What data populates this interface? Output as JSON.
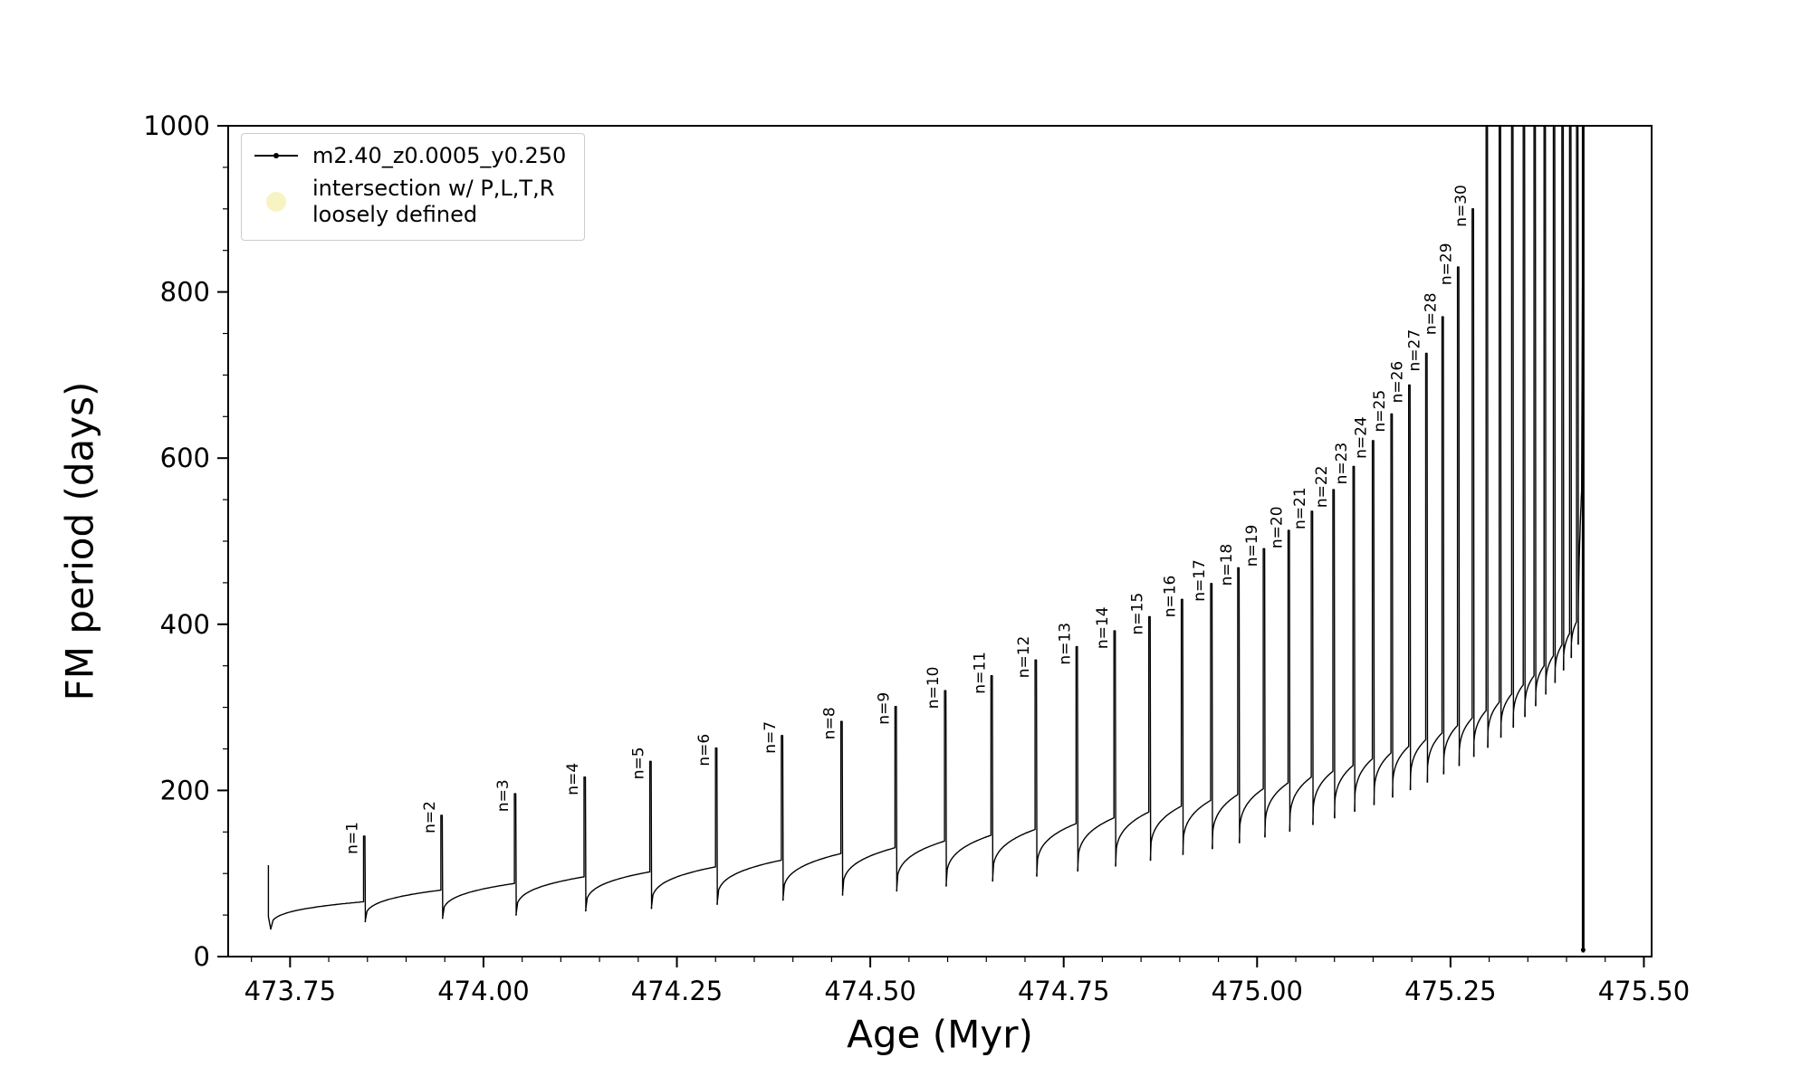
{
  "figure": {
    "background": "#ffffff",
    "axis_color": "#000000"
  },
  "legend": {
    "position": "upper left",
    "series_label": "m2.40_z0.0005_y0.250",
    "intersection_line1": "intersection w/ P,L,T,R",
    "intersection_line2": "loosely defined",
    "marker_color": "#f6f0b4"
  },
  "chart_data": {
    "type": "line",
    "title": "",
    "xlabel": "Age (Myr)",
    "ylabel": "FM period (days)",
    "xlim": [
      473.67,
      475.51
    ],
    "ylim": [
      0,
      1000
    ],
    "xticks": [
      473.75,
      474.0,
      474.25,
      474.5,
      474.75,
      475.0,
      475.25,
      475.5
    ],
    "yticks": [
      0,
      200,
      400,
      600,
      800,
      1000
    ],
    "x_minor_step": 0.05,
    "y_minor_step": 50,
    "grid": false,
    "series_color": "#000000",
    "start": {
      "t": 473.722,
      "y_top": 110,
      "y_low": 33
    },
    "pulses": [
      {
        "label": "n=1",
        "t": 473.845,
        "peak": 145,
        "pre": 66,
        "post": 42
      },
      {
        "label": "n=2",
        "t": 473.945,
        "peak": 170,
        "pre": 80,
        "post": 46
      },
      {
        "label": "n=3",
        "t": 474.04,
        "peak": 196,
        "pre": 88,
        "post": 50
      },
      {
        "label": "n=4",
        "t": 474.13,
        "peak": 216,
        "pre": 96,
        "post": 55
      },
      {
        "label": "n=5",
        "t": 474.215,
        "peak": 235,
        "pre": 102,
        "post": 58
      },
      {
        "label": "n=6",
        "t": 474.3,
        "peak": 251,
        "pre": 108,
        "post": 63
      },
      {
        "label": "n=7",
        "t": 474.385,
        "peak": 266,
        "pre": 116,
        "post": 68
      },
      {
        "label": "n=8",
        "t": 474.462,
        "peak": 283,
        "pre": 124,
        "post": 74
      },
      {
        "label": "n=9",
        "t": 474.532,
        "peak": 301,
        "pre": 131,
        "post": 79
      },
      {
        "label": "n=10",
        "t": 474.596,
        "peak": 320,
        "pre": 139,
        "post": 85
      },
      {
        "label": "n=11",
        "t": 474.656,
        "peak": 338,
        "pre": 146,
        "post": 91
      },
      {
        "label": "n=12",
        "t": 474.713,
        "peak": 357,
        "pre": 153,
        "post": 97
      },
      {
        "label": "n=13",
        "t": 474.766,
        "peak": 373,
        "pre": 160,
        "post": 103
      },
      {
        "label": "n=14",
        "t": 474.815,
        "peak": 392,
        "pre": 167,
        "post": 109
      },
      {
        "label": "n=15",
        "t": 474.86,
        "peak": 409,
        "pre": 174,
        "post": 116
      },
      {
        "label": "n=16",
        "t": 474.902,
        "peak": 430,
        "pre": 181,
        "post": 123
      },
      {
        "label": "n=17",
        "t": 474.94,
        "peak": 449,
        "pre": 188,
        "post": 130
      },
      {
        "label": "n=18",
        "t": 474.975,
        "peak": 468,
        "pre": 195,
        "post": 137
      },
      {
        "label": "n=19",
        "t": 475.008,
        "peak": 491,
        "pre": 202,
        "post": 144
      },
      {
        "label": "n=20",
        "t": 475.04,
        "peak": 513,
        "pre": 209,
        "post": 151
      },
      {
        "label": "n=21",
        "t": 475.07,
        "peak": 536,
        "pre": 216,
        "post": 159
      },
      {
        "label": "n=22",
        "t": 475.098,
        "peak": 562,
        "pre": 223,
        "post": 167
      },
      {
        "label": "n=23",
        "t": 475.124,
        "peak": 590,
        "pre": 230,
        "post": 175
      },
      {
        "label": "n=24",
        "t": 475.149,
        "peak": 621,
        "pre": 238,
        "post": 183
      },
      {
        "label": "n=25",
        "t": 475.173,
        "peak": 653,
        "pre": 245,
        "post": 192
      },
      {
        "label": "n=26",
        "t": 475.196,
        "peak": 688,
        "pre": 253,
        "post": 201
      },
      {
        "label": "n=27",
        "t": 475.218,
        "peak": 726,
        "pre": 261,
        "post": 210
      },
      {
        "label": "n=28",
        "t": 475.239,
        "peak": 770,
        "pre": 269,
        "post": 220
      },
      {
        "label": "n=29",
        "t": 475.259,
        "peak": 830,
        "pre": 278,
        "post": 230
      },
      {
        "label": "n=30",
        "t": 475.278,
        "peak": 900,
        "pre": 287,
        "post": 241
      },
      {
        "label": "",
        "t": 475.296,
        "peak": 1000,
        "pre": 296,
        "post": 252
      },
      {
        "label": "",
        "t": 475.313,
        "peak": 1000,
        "pre": 306,
        "post": 264
      },
      {
        "label": "",
        "t": 475.329,
        "peak": 1000,
        "pre": 316,
        "post": 276
      },
      {
        "label": "",
        "t": 475.344,
        "peak": 1000,
        "pre": 327,
        "post": 289
      },
      {
        "label": "",
        "t": 475.358,
        "peak": 1000,
        "pre": 338,
        "post": 302
      },
      {
        "label": "",
        "t": 475.371,
        "peak": 1000,
        "pre": 350,
        "post": 316
      },
      {
        "label": "",
        "t": 475.383,
        "peak": 1000,
        "pre": 362,
        "post": 330
      },
      {
        "label": "",
        "t": 475.394,
        "peak": 1000,
        "pre": 375,
        "post": 345
      },
      {
        "label": "",
        "t": 475.404,
        "peak": 1000,
        "pre": 389,
        "post": 360
      },
      {
        "label": "",
        "t": 475.413,
        "peak": 1000,
        "pre": 403,
        "post": 376
      }
    ],
    "final_rise": {
      "t_end": 475.4195,
      "y_end": 560
    },
    "terminal": {
      "t": 475.4215,
      "y_min": 5,
      "y_max": 1000
    },
    "terminal_dot": {
      "t": 475.4215,
      "y": 8
    }
  }
}
